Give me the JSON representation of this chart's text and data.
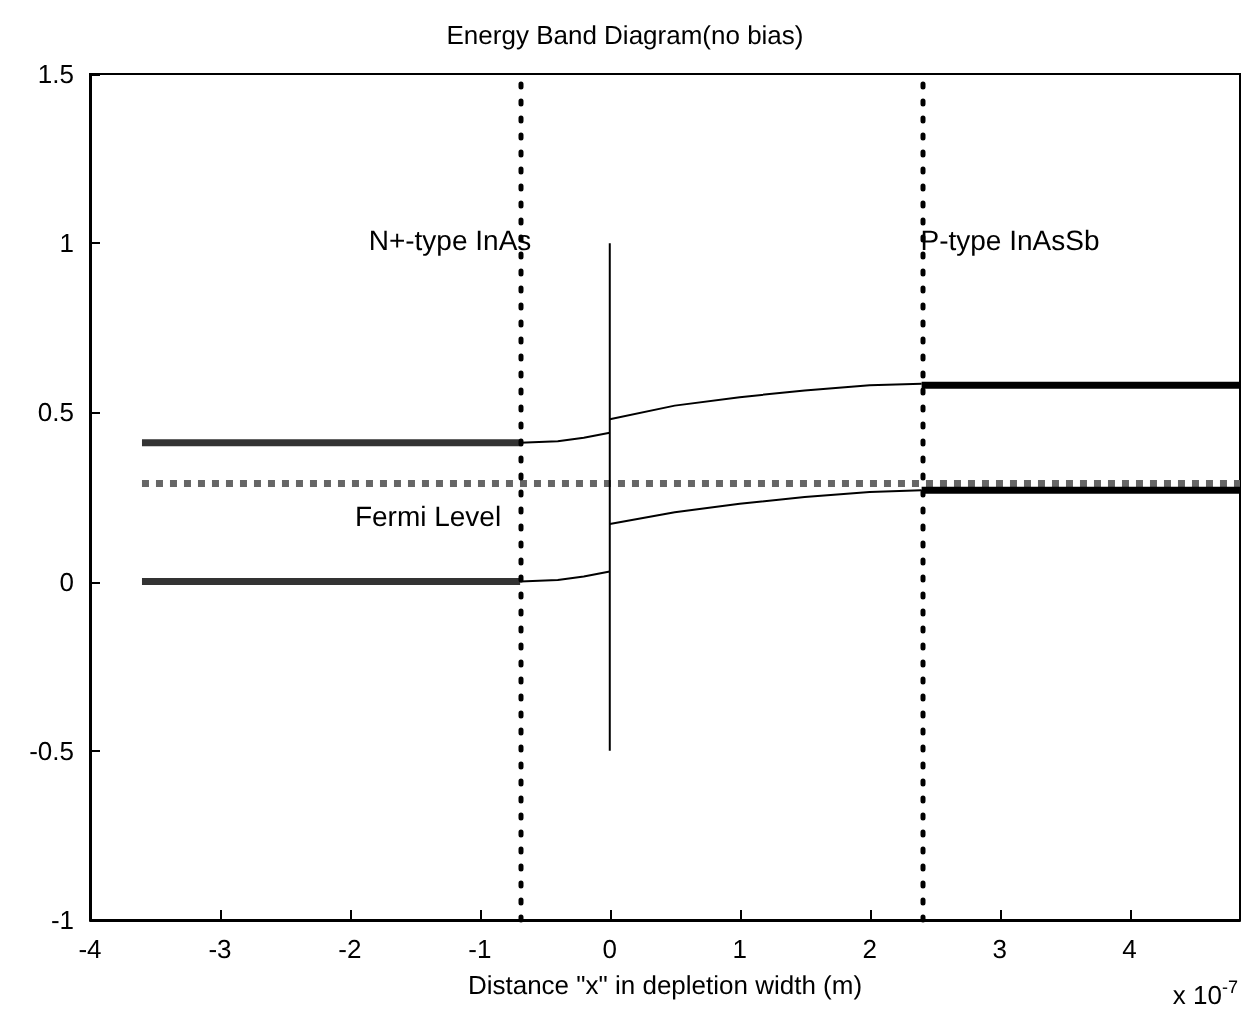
{
  "chart_data": {
    "type": "line",
    "title": "Energy Band Diagram(no bias)",
    "xlabel": "Distance \"x\" in depletion width (m)",
    "xlim": [
      -4,
      4.85
    ],
    "xticks": [
      -4,
      -3,
      -2,
      -1,
      0,
      1,
      2,
      3,
      4
    ],
    "ylim": [
      -1,
      1.5
    ],
    "yticks": [
      -1,
      -0.5,
      0,
      0.5,
      1,
      1.5
    ],
    "grid": false,
    "marker": "none",
    "series": [
      {
        "x": [
          -3.6,
          -0.69
        ],
        "values": [
          0.41,
          0.41
        ],
        "color": "#333333",
        "line_style": "solid"
      },
      {
        "x": [
          -3.6,
          -0.69
        ],
        "values": [
          0,
          0
        ],
        "color": "#333333",
        "line_style": "solid"
      },
      {
        "x": [
          -3.6,
          4.85
        ],
        "values": [
          0.29,
          0.29
        ],
        "color": "#666666",
        "line_style": "dotted"
      },
      {
        "x": [
          2.4,
          4.85
        ],
        "values": [
          0.58,
          0.58
        ],
        "color": "#000000",
        "line_style": "solid"
      },
      {
        "x": [
          2.4,
          4.85
        ],
        "values": [
          0.27,
          0.27
        ],
        "color": "#000000",
        "line_style": "solid"
      },
      {
        "x": [
          -0.69,
          -0.4,
          -0.2,
          0
        ],
        "values": [
          0.41,
          0.415,
          0.425,
          0.44
        ],
        "color": "#000000",
        "line_style": "solid"
      },
      {
        "x": [
          -0.69,
          -0.4,
          -0.2,
          0
        ],
        "values": [
          0,
          0.005,
          0.015,
          0.03
        ],
        "color": "#000000",
        "line_style": "solid"
      },
      {
        "x": [
          0,
          0.5,
          1,
          1.5,
          2,
          2.4
        ],
        "values": [
          0.48,
          0.52,
          0.545,
          0.565,
          0.58,
          0.585
        ],
        "color": "#000000",
        "line_style": "solid"
      },
      {
        "x": [
          0,
          0.5,
          1,
          1.5,
          2,
          2.4
        ],
        "values": [
          0.17,
          0.205,
          0.23,
          0.25,
          0.265,
          0.27
        ],
        "color": "#000000",
        "line_style": "solid"
      },
      {
        "x": [
          0,
          0
        ],
        "values": [
          -0.5,
          1
        ],
        "color": "#000000",
        "line_style": "solid"
      }
    ],
    "ref_lines": [
      {
        "axis": "x",
        "value": -0.69,
        "color": "#000000",
        "line_style": "dotted"
      },
      {
        "axis": "x",
        "value": 2.4,
        "color": "#000000",
        "line_style": "dotted"
      }
    ],
    "annotations": [
      "N+-type InAs",
      "P-type InAsSb",
      "Fermi Level",
      "x 10$^{-7}$"
    ]
  }
}
